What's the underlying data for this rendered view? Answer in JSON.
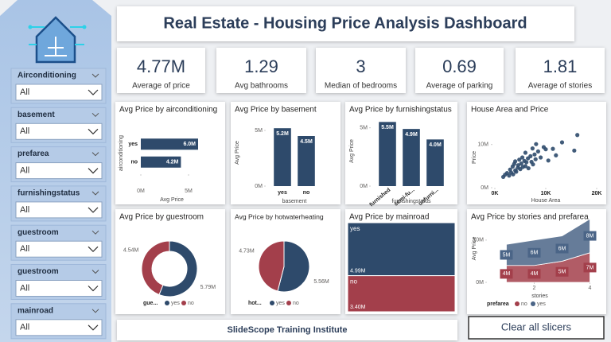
{
  "title": "Real Estate - Housing Price Analysis Dashboard",
  "kpis": [
    {
      "value": "4.77M",
      "label": "Average of price"
    },
    {
      "value": "1.29",
      "label": "Avg bathrooms"
    },
    {
      "value": "3",
      "label": "Median of bedrooms"
    },
    {
      "value": "0.69",
      "label": "Average of parking"
    },
    {
      "value": "1.81",
      "label": "Average of stories"
    }
  ],
  "slicers": [
    {
      "label": "Airconditioning",
      "value": "All"
    },
    {
      "label": "basement",
      "value": "All"
    },
    {
      "label": "prefarea",
      "value": "All"
    },
    {
      "label": "furnishingstatus",
      "value": "All"
    },
    {
      "label": "guestroom",
      "value": "All"
    },
    {
      "label": "guestroom",
      "value": "All"
    },
    {
      "label": "mainroad",
      "value": "All"
    }
  ],
  "footer": "SlideScope Training Institute",
  "button": "Clear all slicers",
  "chart_data": [
    {
      "type": "bar",
      "horizontal": true,
      "title": "Avg Price by airconditioning",
      "categories": [
        "yes",
        "no"
      ],
      "values": [
        6000000,
        4200000
      ],
      "value_labels": [
        "6.0M",
        "4.2M"
      ],
      "color": "#2e4a6b",
      "xlim": [
        0,
        6500000
      ],
      "xticks": [
        {
          "value": 0,
          "label": "0M"
        },
        {
          "value": 5000000,
          "label": "5M"
        }
      ],
      "xlabel": "Avg Price",
      "ylabel": "airconditioning"
    },
    {
      "type": "bar",
      "title": "Avg Price by basement",
      "categories": [
        "yes",
        "no"
      ],
      "values": [
        5200000,
        4500000
      ],
      "value_labels": [
        "5.2M",
        "4.5M"
      ],
      "color": "#2e4a6b",
      "ylim": [
        0,
        6000000
      ],
      "yticks": [
        {
          "value": 0,
          "label": "0M"
        },
        {
          "value": 5000000,
          "label": "5M"
        }
      ],
      "xlabel": "basement",
      "ylabel": "Avg Price"
    },
    {
      "type": "bar",
      "title": "Avg Price by furnishingstatus",
      "categories": [
        "furnished",
        "semi-fu...",
        "unfurni..."
      ],
      "values": [
        5500000,
        4900000,
        4000000
      ],
      "value_labels": [
        "5.5M",
        "4.9M",
        "4.0M"
      ],
      "color": "#2e4a6b",
      "ylim": [
        0,
        6000000
      ],
      "yticks": [
        {
          "value": 0,
          "label": "0M"
        },
        {
          "value": 5000000,
          "label": "5M"
        }
      ],
      "xlabel": "furnishingstatus",
      "ylabel": "Avg Price"
    },
    {
      "type": "scatter",
      "title": "House Area and Price",
      "color": "#2e4a6b",
      "xlabel": "House Area",
      "ylabel": "Price",
      "x": [
        1650,
        2000,
        2400,
        2800,
        3000,
        3200,
        3500,
        3600,
        3800,
        4000,
        4000,
        4200,
        4500,
        4600,
        4800,
        5000,
        5200,
        5400,
        5500,
        5800,
        6000,
        6000,
        6200,
        6500,
        6600,
        7000,
        7200,
        7400,
        7500,
        7800,
        8000,
        8100,
        8500,
        9000,
        9600,
        10000,
        10500,
        11400,
        12000,
        13200,
        15600,
        16200
      ],
      "y": [
        2500000,
        3000000,
        3400000,
        2800000,
        4200000,
        3500000,
        4900000,
        3100000,
        5500000,
        4000000,
        6100000,
        3700000,
        4600000,
        5200000,
        6500000,
        4300000,
        5600000,
        7000000,
        4800000,
        6200000,
        5000000,
        8100000,
        5900000,
        6800000,
        4500000,
        7300000,
        6000000,
        9100000,
        5400000,
        7700000,
        6600000,
        10100000,
        8400000,
        7000000,
        9400000,
        8900000,
        6300000,
        9000000,
        7500000,
        10500000,
        8600000,
        12200000
      ],
      "xlim": [
        0,
        20000
      ],
      "xticks": [
        {
          "value": 0,
          "label": "0K"
        },
        {
          "value": 10000,
          "label": "10K"
        },
        {
          "value": 20000,
          "label": "20K"
        }
      ],
      "ylim": [
        0,
        14000000
      ],
      "yticks": [
        {
          "value": 0,
          "label": "0M"
        },
        {
          "value": 10000000,
          "label": "10M"
        }
      ]
    },
    {
      "type": "donut",
      "title": "Avg Price by guestroom",
      "categories": [
        "yes",
        "no"
      ],
      "values": [
        5790000,
        4540000
      ],
      "value_labels": [
        "5.79M",
        "4.54M"
      ],
      "colors": [
        "#2e4a6b",
        "#a33f4b"
      ],
      "legend_title": "gue..."
    },
    {
      "type": "pie",
      "title": "Avg Price by hotwaterheating",
      "categories": [
        "yes",
        "no"
      ],
      "values": [
        5560000,
        4730000
      ],
      "value_labels": [
        "5.56M",
        "4.73M"
      ],
      "colors": [
        "#2e4a6b",
        "#a33f4b"
      ],
      "legend_title": "hot..."
    },
    {
      "type": "treemap",
      "title": "Avg Price by mainroad",
      "categories": [
        "yes",
        "no"
      ],
      "values": [
        4990000,
        3400000
      ],
      "value_labels": [
        "4.99M",
        "3.40M"
      ],
      "colors": [
        "#2e4a6b",
        "#a33f4b"
      ]
    },
    {
      "type": "area",
      "stacked": true,
      "title": "Avg Price by stories and prefarea",
      "x": [
        1,
        2,
        3,
        4
      ],
      "xlim": [
        0.3,
        4.1
      ],
      "xticks": [
        2,
        4
      ],
      "ylim": [
        0,
        16000000
      ],
      "yticks": [
        {
          "value": 0,
          "label": "0M"
        },
        {
          "value": 10000000,
          "label": "10M"
        }
      ],
      "xlabel": "stories",
      "ylabel": "Avg Price",
      "legend_title": "prefarea",
      "series": [
        {
          "name": "no",
          "color": "#a33f4b",
          "values": [
            4000000,
            4000000,
            5000000,
            7000000
          ],
          "value_labels": [
            "4M",
            "4M",
            "5M",
            "7M"
          ]
        },
        {
          "name": "yes",
          "color": "#4b6587",
          "values": [
            5000000,
            6000000,
            6000000,
            8000000
          ],
          "value_labels": [
            "5M",
            "6M",
            "6M",
            "8M"
          ]
        }
      ]
    }
  ]
}
